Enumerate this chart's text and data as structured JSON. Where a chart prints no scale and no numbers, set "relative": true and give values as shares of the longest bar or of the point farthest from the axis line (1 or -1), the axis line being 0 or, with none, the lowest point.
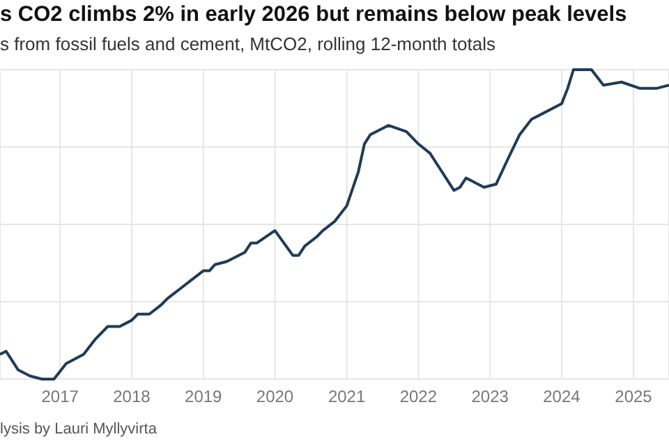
{
  "chart_data": {
    "type": "line",
    "title": "s CO2 climbs 2% in early 2026 but remains below peak levels",
    "subtitle": "s from fossil fuels and cement, MtCO2, rolling 12-month totals",
    "annotations": [
      "lysis by Lauri Myllyvirta"
    ],
    "relative": true,
    "grid": true,
    "x": [
      "2016-03",
      "2016-04",
      "2016-06",
      "2016-08",
      "2016-10",
      "2016-12",
      "2017-02",
      "2017-05",
      "2017-07",
      "2017-09",
      "2017-11",
      "2018-01",
      "2018-02",
      "2018-04",
      "2018-06",
      "2018-07",
      "2018-09",
      "2018-11",
      "2019-01",
      "2019-02",
      "2019-03",
      "2019-05",
      "2019-08",
      "2019-09",
      "2019-10",
      "2020-01",
      "2020-04",
      "2020-05",
      "2020-06",
      "2020-08",
      "2020-09",
      "2020-11",
      "2021-01",
      "2021-03",
      "2021-04",
      "2021-05",
      "2021-08",
      "2021-11",
      "2022-01",
      "2022-03",
      "2022-05",
      "2022-07",
      "2022-08",
      "2022-09",
      "2022-10",
      "2022-12",
      "2023-02",
      "2023-04",
      "2023-06",
      "2023-08",
      "2023-09",
      "2024-01",
      "2024-02",
      "2024-03",
      "2024-06",
      "2024-08",
      "2024-11",
      "2025-02",
      "2025-05",
      "2025-07"
    ],
    "xlim": [
      "2016-03",
      "2025-07"
    ],
    "xticks": [
      "2017",
      "2018",
      "2019",
      "2020",
      "2021",
      "2022",
      "2023",
      "2024",
      "2025"
    ],
    "series": [
      {
        "color": "#1f3b57",
        "values": [
          0.08,
          0.09,
          0.03,
          0.01,
          0,
          0,
          0.05,
          0.08,
          0.13,
          0.17,
          0.17,
          0.19,
          0.21,
          0.21,
          0.24,
          0.26,
          0.29,
          0.32,
          0.35,
          0.35,
          0.37,
          0.38,
          0.41,
          0.44,
          0.44,
          0.48,
          0.4,
          0.4,
          0.43,
          0.46,
          0.48,
          0.51,
          0.56,
          0.67,
          0.76,
          0.79,
          0.82,
          0.8,
          0.76,
          0.73,
          0.67,
          0.61,
          0.62,
          0.65,
          0.64,
          0.62,
          0.63,
          0.71,
          0.79,
          0.84,
          0.85,
          0.89,
          0.94,
          1,
          1,
          0.95,
          0.96,
          0.94,
          0.94,
          0.95
        ]
      }
    ]
  }
}
